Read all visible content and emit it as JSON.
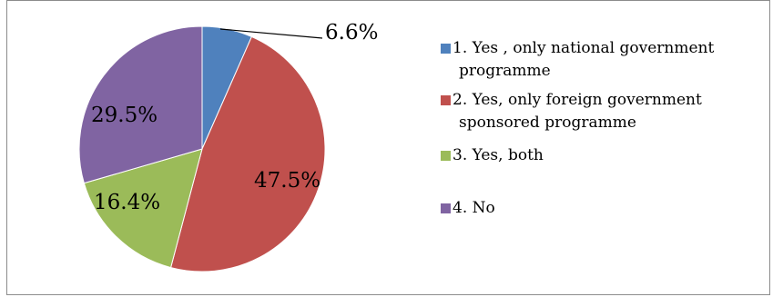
{
  "chart_data": {
    "type": "pie",
    "title": "",
    "categories": [
      "1. Yes , only national government programme",
      "2.  Yes, only foreign government sponsored programme",
      "3. Yes, both",
      "4. No"
    ],
    "values": [
      6.6,
      47.5,
      16.4,
      29.5
    ],
    "value_labels": [
      "6.6%",
      "47.5%",
      "16.4%",
      "29.5%"
    ],
    "colors": [
      "#4f81bd",
      "#c0504d",
      "#9bbb59",
      "#8064a2"
    ],
    "legend_position": "right",
    "start_angle": "12 o'clock, clockwise"
  },
  "legend": [
    {
      "line1": "1. Yes , only national government",
      "line2": "programme"
    },
    {
      "line1": "2.  Yes, only foreign government",
      "line2": "sponsored programme"
    },
    {
      "line1": "3. Yes, both",
      "line2": ""
    },
    {
      "line1": "4. No",
      "line2": ""
    }
  ]
}
